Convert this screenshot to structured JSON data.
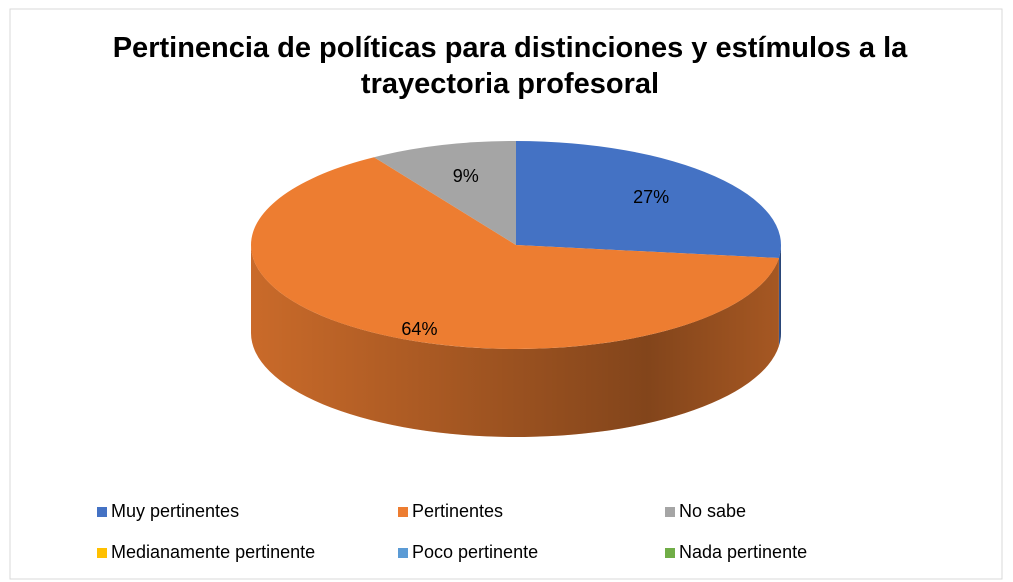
{
  "chart_data": {
    "type": "pie",
    "title": "Pertinencia de políticas para distinciones y estímulos a la trayectoria profesoral",
    "categories": [
      "Muy pertinentes",
      "Pertinentes",
      "No sabe",
      "Medianamente pertinente",
      "Poco pertinente",
      "Nada pertinente"
    ],
    "values": [
      27,
      64,
      9,
      0,
      0,
      0
    ],
    "value_labels": [
      "27%",
      "64%",
      "9%",
      null,
      null,
      null
    ],
    "colors": [
      "#4472c4",
      "#ed7d31",
      "#a5a5a5",
      "#ffc000",
      "#5b9bd5",
      "#70ad47"
    ],
    "legend": "bottom"
  }
}
